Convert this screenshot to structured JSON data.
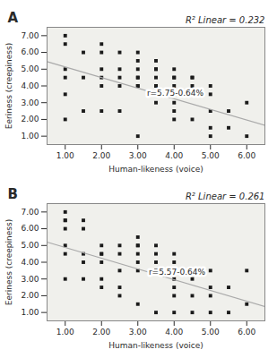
{
  "chart_data": [
    {
      "type": "scatter",
      "title": "A",
      "subtitle": "R² Linear = 0.232",
      "annotations": [
        {
          "text": "r=5.75-0.64%",
          "x": 3.25,
          "y": 3.55
        }
      ],
      "xlabel": "Human-likeness (voice)",
      "ylabel": "Eeriness (creepiness)",
      "xlim": [
        0.5,
        6.5
      ],
      "ylim": [
        0.5,
        7.5
      ],
      "xticks": [
        {
          "value": 1.0,
          "label": "1.00"
        },
        {
          "value": 2.0,
          "label": "2.00"
        },
        {
          "value": 3.0,
          "label": "3.00"
        },
        {
          "value": 4.0,
          "label": "4.00"
        },
        {
          "value": 5.0,
          "label": "5.00"
        },
        {
          "value": 6.0,
          "label": "6.00"
        }
      ],
      "yticks": [
        {
          "value": 1.0,
          "label": "1.00"
        },
        {
          "value": 2.0,
          "label": "2.00"
        },
        {
          "value": 3.0,
          "label": "3.00"
        },
        {
          "value": 4.0,
          "label": "4.00"
        },
        {
          "value": 5.0,
          "label": "5.00"
        },
        {
          "value": 6.0,
          "label": "6.00"
        },
        {
          "value": 7.0,
          "label": "7.00"
        }
      ],
      "grid": false,
      "series": [
        {
          "type": "scatter",
          "marker": "square",
          "color": "#1a1a1a",
          "x": [
            1.0,
            1.0,
            1.0,
            1.0,
            1.0,
            1.0,
            1.5,
            1.5,
            1.5,
            2.0,
            2.0,
            2.0,
            2.0,
            2.0,
            2.0,
            2.5,
            2.5,
            2.5,
            2.5,
            2.5,
            3.0,
            3.0,
            3.0,
            3.0,
            3.0,
            3.0,
            3.0,
            3.0,
            3.5,
            3.5,
            3.5,
            3.5,
            3.5,
            3.5,
            3.5,
            4.0,
            4.0,
            4.0,
            4.0,
            4.0,
            4.0,
            4.0,
            4.0,
            4.5,
            4.5,
            4.5,
            4.5,
            4.5,
            5.0,
            5.0,
            5.0,
            5.0,
            5.0,
            5.5,
            5.5,
            6.0,
            6.0
          ],
          "values": [
            7.0,
            6.5,
            5.0,
            4.5,
            3.5,
            2.0,
            6.0,
            4.5,
            2.5,
            6.5,
            6.0,
            5.0,
            4.5,
            4.0,
            2.5,
            6.0,
            5.0,
            4.5,
            4.0,
            2.5,
            6.0,
            5.5,
            5.0,
            4.5,
            4.5,
            4.0,
            4.0,
            1.0,
            5.5,
            5.0,
            5.0,
            4.5,
            4.0,
            4.0,
            3.0,
            5.0,
            4.5,
            4.5,
            4.0,
            3.5,
            3.0,
            2.5,
            2.0,
            4.5,
            4.5,
            4.0,
            3.5,
            2.0,
            4.0,
            3.5,
            2.5,
            1.5,
            1.0,
            2.5,
            1.5,
            3.0,
            1.0
          ]
        },
        {
          "type": "line",
          "line_style": "solid",
          "color": "#aaaaaa",
          "x": [
            0.5,
            6.5
          ],
          "values": [
            5.45,
            1.65
          ]
        }
      ]
    },
    {
      "type": "scatter",
      "title": "B",
      "subtitle": "R² Linear = 0.261",
      "annotations": [
        {
          "text": "r=5.57-0.64%",
          "x": 3.3,
          "y": 3.4
        }
      ],
      "xlabel": "Human-likeness (voice)",
      "ylabel": "Eeriness (creepiness)",
      "xlim": [
        0.5,
        6.5
      ],
      "ylim": [
        0.5,
        7.5
      ],
      "xticks": [
        {
          "value": 1.0,
          "label": "1.00"
        },
        {
          "value": 2.0,
          "label": "2.00"
        },
        {
          "value": 3.0,
          "label": "3.00"
        },
        {
          "value": 4.0,
          "label": "4.00"
        },
        {
          "value": 5.0,
          "label": "5.00"
        },
        {
          "value": 6.0,
          "label": "6.00"
        }
      ],
      "yticks": [
        {
          "value": 1.0,
          "label": "1.00"
        },
        {
          "value": 2.0,
          "label": "2.00"
        },
        {
          "value": 3.0,
          "label": "3.00"
        },
        {
          "value": 4.0,
          "label": "4.00"
        },
        {
          "value": 5.0,
          "label": "5.00"
        },
        {
          "value": 6.0,
          "label": "6.00"
        },
        {
          "value": 7.0,
          "label": "7.00"
        }
      ],
      "grid": false,
      "series": [
        {
          "type": "scatter",
          "marker": "square",
          "color": "#1a1a1a",
          "x": [
            1.0,
            1.0,
            1.0,
            1.0,
            1.0,
            1.0,
            1.0,
            1.5,
            1.5,
            1.5,
            1.5,
            1.5,
            2.0,
            2.0,
            2.0,
            2.0,
            2.0,
            2.0,
            2.5,
            2.5,
            2.5,
            2.5,
            2.5,
            3.0,
            3.0,
            3.0,
            3.0,
            3.0,
            3.0,
            3.0,
            3.5,
            3.5,
            3.5,
            3.5,
            3.5,
            3.5,
            4.0,
            4.0,
            4.0,
            4.0,
            4.0,
            4.0,
            4.0,
            4.5,
            4.5,
            4.5,
            4.5,
            5.0,
            5.0,
            5.0,
            5.0,
            5.5,
            5.5,
            6.0,
            6.0
          ],
          "values": [
            7.0,
            6.5,
            6.5,
            6.0,
            5.0,
            4.5,
            3.0,
            6.5,
            6.0,
            4.5,
            4.0,
            3.0,
            5.0,
            4.5,
            4.5,
            4.0,
            3.0,
            2.5,
            5.0,
            4.5,
            3.5,
            2.5,
            2.0,
            5.5,
            5.0,
            5.0,
            4.5,
            4.0,
            3.5,
            1.5,
            5.0,
            4.5,
            4.0,
            3.5,
            3.5,
            1.0,
            4.5,
            4.0,
            3.5,
            3.0,
            2.5,
            2.0,
            1.0,
            3.5,
            3.0,
            2.0,
            1.0,
            3.5,
            2.5,
            2.0,
            1.0,
            2.5,
            1.0,
            3.5,
            1.5
          ]
        },
        {
          "type": "line",
          "line_style": "solid",
          "color": "#aaaaaa",
          "x": [
            0.5,
            6.5
          ],
          "values": [
            5.2,
            1.35
          ]
        }
      ]
    }
  ]
}
